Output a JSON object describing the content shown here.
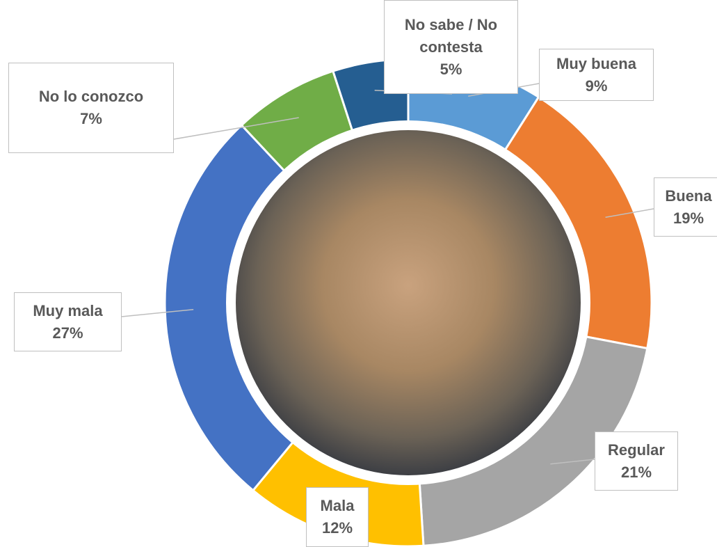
{
  "chart_data": {
    "type": "donut",
    "categories": [
      "Muy buena",
      "Buena",
      "Regular",
      "Mala",
      "Muy mala",
      "No lo conozco",
      "No sabe / No contesta"
    ],
    "values": [
      9,
      19,
      21,
      12,
      27,
      7,
      5
    ],
    "value_labels": [
      "9%",
      "19%",
      "21%",
      "12%",
      "27%",
      "7%",
      "5%"
    ],
    "colors": [
      "#5b9bd5",
      "#ed7d31",
      "#a5a5a5",
      "#ffc000",
      "#4472c4",
      "#70ad47",
      "#255e91"
    ]
  }
}
